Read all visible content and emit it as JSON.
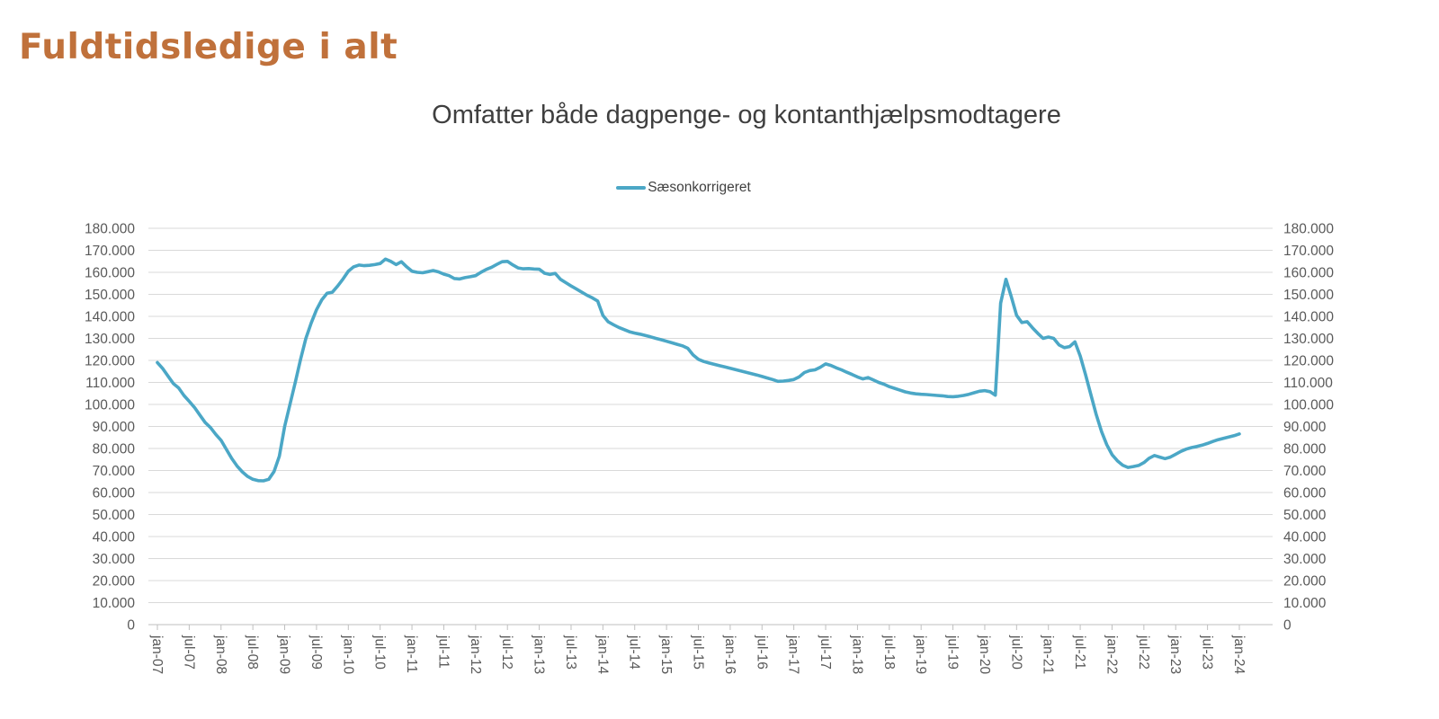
{
  "header": {
    "title": "Fuldtidsledige i alt"
  },
  "chart": {
    "subtitle": "Omfatter både dagpenge- og kontanthjælpsmodtagere",
    "legend": {
      "label": "Sæsonkorrigeret",
      "swatch_color": "#4BA7C6"
    },
    "colors": {
      "title": "#C0713B",
      "subtitle_text": "#3f3f3f",
      "axis_label_text": "#595959",
      "gridline": "#D9D9D9",
      "axis_line": "#BFBFBF",
      "series_line": "#4BA7C6"
    }
  },
  "chart_data": {
    "type": "line",
    "title": "Omfatter både dagpenge- og kontanthjælpsmodtagere",
    "legend_entries": [
      "Sæsonkorrigeret"
    ],
    "legend_position": "top-center",
    "grid": "horizontal",
    "ylim": [
      0,
      180000
    ],
    "ytick_step": 10000,
    "ytick_labels_both_sides": true,
    "x_unit": "month",
    "x_start": "jan-07",
    "x_end": "jan-24",
    "xtick_every_n_points": 6,
    "xtick_labels": [
      "jan-07",
      "jul-07",
      "jan-08",
      "jul-08",
      "jan-09",
      "jul-09",
      "jan-10",
      "jul-10",
      "jan-11",
      "jul-11",
      "jan-12",
      "jul-12",
      "jan-13",
      "jul-13",
      "jan-14",
      "jul-14",
      "jan-15",
      "jul-15",
      "jan-16",
      "jul-16",
      "jan-17",
      "jul-17",
      "jan-18",
      "jul-18",
      "jan-19",
      "jul-19",
      "jan-20",
      "jul-20",
      "jan-21",
      "jul-21",
      "jan-22",
      "jul-22",
      "jan-23",
      "jul-23",
      "jan-24"
    ],
    "series": [
      {
        "name": "Sæsonkorrigeret",
        "color": "#4BA7C6",
        "values": [
          119000,
          116300,
          112900,
          109500,
          107500,
          104100,
          101400,
          98600,
          95200,
          91800,
          89500,
          86400,
          83700,
          79600,
          75500,
          72100,
          69400,
          67300,
          66000,
          65400,
          65300,
          66000,
          69500,
          76500,
          90000,
          100000,
          110000,
          120500,
          130000,
          137000,
          143000,
          147500,
          150500,
          151000,
          153800,
          157000,
          160500,
          162500,
          163300,
          163000,
          163200,
          163500,
          164000,
          166000,
          165000,
          163500,
          164800,
          162500,
          160500,
          160000,
          159800,
          160300,
          160800,
          160200,
          159200,
          158500,
          157200,
          157000,
          157600,
          158000,
          158500,
          160000,
          161300,
          162300,
          163600,
          164800,
          165000,
          163400,
          162000,
          161600,
          161700,
          161500,
          161400,
          159600,
          159000,
          159500,
          156800,
          155300,
          153800,
          152400,
          151000,
          149600,
          148400,
          147000,
          140400,
          137500,
          136200,
          135000,
          134000,
          133000,
          132400,
          131900,
          131300,
          130700,
          130000,
          129400,
          128700,
          128000,
          127300,
          126600,
          125500,
          122500,
          120500,
          119500,
          118800,
          118200,
          117600,
          117000,
          116400,
          115800,
          115200,
          114600,
          114000,
          113400,
          112700,
          112000,
          111300,
          110500,
          110600,
          110900,
          111300,
          112500,
          114500,
          115400,
          115700,
          116900,
          118400,
          117700,
          116600,
          115700,
          114600,
          113600,
          112500,
          111600,
          112200,
          111100,
          110000,
          109200,
          108100,
          107300,
          106500,
          105700,
          105200,
          104800,
          104600,
          104500,
          104300,
          104100,
          103900,
          103600,
          103500,
          103700,
          104100,
          104600,
          105300,
          106000,
          106300,
          105800,
          104200,
          146000,
          156800,
          149000,
          140500,
          137200,
          137600,
          134800,
          132300,
          130000,
          130600,
          130000,
          127000,
          125800,
          126300,
          128400,
          122000,
          113500,
          104500,
          95500,
          87800,
          81700,
          77200,
          74400,
          72400,
          71400,
          71800,
          72300,
          73600,
          75600,
          76800,
          76100,
          75400,
          76100,
          77400,
          78700,
          79700,
          80400,
          80900,
          81500,
          82300,
          83200,
          84000,
          84600,
          85200,
          85800,
          86600
        ]
      }
    ]
  }
}
